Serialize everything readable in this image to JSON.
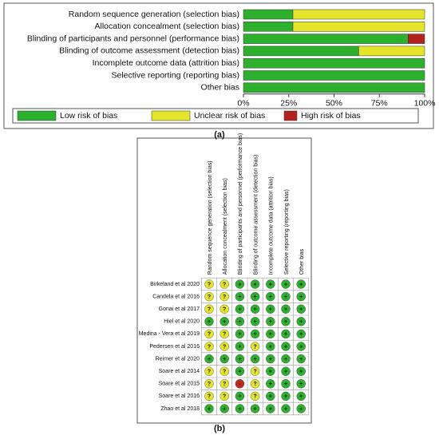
{
  "chart_data": [
    {
      "type": "stacked-bar",
      "caption": "(a)",
      "categories": [
        "Random sequence generation (selection bias)",
        "Allocation concealment (selection bias)",
        "Blinding of participants and personnel (performance bias)",
        "Blinding of outcome assessment (detection bias)",
        "Incomplete outcome data (attrition bias)",
        "Selective reporting (reporting bias)",
        "Other bias"
      ],
      "series": [
        {
          "name": "Low risk of bias",
          "color": "#2db02d",
          "values": [
            27.3,
            27.3,
            90.9,
            63.6,
            100,
            100,
            100
          ]
        },
        {
          "name": "Unclear risk of bias",
          "color": "#e4e42a",
          "values": [
            72.7,
            72.7,
            0,
            36.4,
            0,
            0,
            0
          ]
        },
        {
          "name": "High risk of bias",
          "color": "#b3221c",
          "values": [
            0,
            0,
            9.1,
            0,
            0,
            0,
            0
          ]
        }
      ],
      "xlim": [
        0,
        100
      ],
      "xticks": [
        {
          "value": 0,
          "label": "0%"
        },
        {
          "value": 25,
          "label": "25%"
        },
        {
          "value": 50,
          "label": "50%"
        },
        {
          "value": 75,
          "label": "75%"
        },
        {
          "value": 100,
          "label": "100%"
        }
      ],
      "legend": "bottom"
    },
    {
      "type": "judgment-grid",
      "caption": "(b)",
      "columns": [
        "Random sequence generation (selection bias)",
        "Allocation concealment (selection bias)",
        "Blinding of participants and personnel (performance bias)",
        "Blinding of outcome assessment (detection bias)",
        "Incomplete outcome data (attrition bias)",
        "Selective reporting (reporting bias)",
        "Other bias"
      ],
      "judgment_colors": {
        "+": "#2db02d",
        "?": "#e4e42a",
        "-": "#c0281e"
      },
      "rows": [
        {
          "study": "Birkeland et al 2020",
          "judgments": [
            "?",
            "?",
            "+",
            "+",
            "+",
            "+",
            "+"
          ]
        },
        {
          "study": "Candela et al 2016",
          "judgments": [
            "?",
            "?",
            "+",
            "+",
            "+",
            "+",
            "+"
          ]
        },
        {
          "study": "Gonai et al 2017",
          "judgments": [
            "?",
            "?",
            "+",
            "+",
            "+",
            "+",
            "+"
          ]
        },
        {
          "study": "Hiel et al 2020",
          "judgments": [
            "+",
            "+",
            "+",
            "+",
            "+",
            "+",
            "+"
          ]
        },
        {
          "study": "Medina - Vera et al 2019",
          "judgments": [
            "?",
            "?",
            "+",
            "+",
            "+",
            "+",
            "+"
          ]
        },
        {
          "study": "Pedersen et al 2016",
          "judgments": [
            "?",
            "?",
            "+",
            "?",
            "+",
            "+",
            "+"
          ]
        },
        {
          "study": "Reimer et al 2020",
          "judgments": [
            "+",
            "+",
            "+",
            "+",
            "+",
            "+",
            "+"
          ]
        },
        {
          "study": "Soare et al 2014",
          "judgments": [
            "?",
            "?",
            "+",
            "?",
            "+",
            "+",
            "+"
          ]
        },
        {
          "study": "Soare et al 2015",
          "judgments": [
            "?",
            "?",
            "-",
            "?",
            "+",
            "+",
            "+"
          ]
        },
        {
          "study": "Soare et al 2016",
          "judgments": [
            "?",
            "?",
            "+",
            "?",
            "+",
            "+",
            "+"
          ]
        },
        {
          "study": "Zhao et al 2018",
          "judgments": [
            "+",
            "+",
            "+",
            "+",
            "+",
            "+",
            "+"
          ]
        }
      ]
    }
  ]
}
